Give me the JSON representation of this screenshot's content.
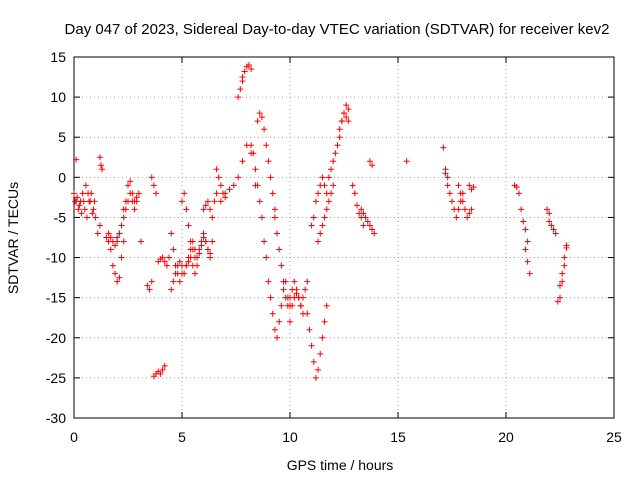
{
  "chart_data": {
    "type": "scatter",
    "title": "Day 047 of 2023, Sidereal Day-to-day VTEC variation (SDTVAR) for receiver kev2",
    "xlabel": "GPS time / hours",
    "ylabel": "SDTVAR / TECUs",
    "xlim": [
      0,
      25
    ],
    "ylim": [
      -30,
      15
    ],
    "xticks": [
      0,
      5,
      10,
      15,
      20,
      25
    ],
    "yticks": [
      -30,
      -25,
      -20,
      -15,
      -10,
      -5,
      0,
      5,
      10,
      15
    ],
    "grid": true,
    "marker": "+",
    "series_color": "#ff0000",
    "series": [
      {
        "name": "SDTVAR",
        "segments": [
          {
            "x": [
              0.0,
              0.1,
              0.2,
              0.3,
              0.4,
              0.5,
              0.6,
              0.7,
              0.8,
              0.9,
              1.0,
              1.1,
              1.2
            ],
            "y": [
              -2,
              -3,
              -4,
              -3,
              -2,
              -4,
              -5,
              -3,
              -2,
              -4,
              -5,
              -7,
              -6
            ]
          },
          {
            "x": [
              0.05,
              0.15,
              0.25,
              0.35,
              0.45,
              0.55,
              0.65,
              0.75,
              0.85,
              0.95
            ],
            "y": [
              -3,
              -2.5,
              -3.5,
              -4.5,
              -3,
              -1,
              -2,
              -3,
              -4.5,
              -3
            ]
          },
          {
            "x": [
              0.1
            ],
            "y": [
              2.2
            ]
          },
          {
            "x": [
              1.2,
              1.25,
              1.3
            ],
            "y": [
              2.5,
              1.5,
              1.0
            ]
          },
          {
            "x": [
              1.5,
              1.6,
              1.7,
              1.8,
              1.9,
              2.0,
              2.1,
              2.2,
              2.3
            ],
            "y": [
              -7.5,
              -8,
              -9,
              -11,
              -12,
              -13,
              -12.5,
              -10,
              -8
            ]
          },
          {
            "x": [
              1.6,
              1.7,
              1.8,
              1.9,
              2.0,
              2.1
            ],
            "y": [
              -7,
              -7.5,
              -8,
              -8.5,
              -7.5,
              -7
            ]
          },
          {
            "x": [
              2.0,
              2.1,
              2.2,
              2.3,
              2.4,
              2.5,
              2.6,
              2.7,
              2.8,
              2.9,
              3.0
            ],
            "y": [
              -8,
              -7,
              -6,
              -4,
              -3,
              -1,
              -0.5,
              -2,
              -3,
              -2.5,
              -2
            ]
          },
          {
            "x": [
              2.3,
              2.4,
              2.5,
              2.6,
              2.7,
              2.8,
              2.9
            ],
            "y": [
              -5,
              -4,
              -3,
              -2,
              -3,
              -4,
              -3
            ]
          },
          {
            "x": [
              3.1
            ],
            "y": [
              -8
            ]
          },
          {
            "x": [
              3.4,
              3.5,
              3.6
            ],
            "y": [
              -13.5,
              -14,
              -13
            ]
          },
          {
            "x": [
              3.6,
              3.7,
              3.8
            ],
            "y": [
              0,
              -1,
              -2
            ]
          },
          {
            "x": [
              3.7,
              3.8,
              3.9,
              4.0,
              4.1,
              4.2
            ],
            "y": [
              -24.8,
              -24.5,
              -24.2,
              -24.5,
              -24,
              -23.5
            ]
          },
          {
            "x": [
              3.9,
              4.0,
              4.1,
              4.2,
              4.3,
              4.4,
              4.5,
              4.6,
              4.7,
              4.8,
              4.9,
              5.0
            ],
            "y": [
              -10.5,
              -10.2,
              -10,
              -10.5,
              -11,
              -10,
              -7,
              -9,
              -11,
              -12,
              -13,
              -12
            ]
          },
          {
            "x": [
              4.5,
              4.6,
              4.7,
              4.8,
              4.9,
              5.0,
              5.1,
              5.2,
              5.3,
              5.4,
              5.5,
              5.6,
              5.7,
              5.8,
              5.9,
              6.0,
              6.1,
              6.2,
              6.3,
              6.4
            ],
            "y": [
              -14,
              -13,
              -12,
              -11,
              -10.5,
              -11,
              -12,
              -11,
              -10,
              -9,
              -8,
              -9,
              -10,
              -9,
              -8,
              -7,
              -8,
              -9,
              -10,
              -8
            ]
          },
          {
            "x": [
              5.0,
              5.1,
              5.2,
              5.3,
              5.4,
              5.5,
              5.6
            ],
            "y": [
              -3,
              -2,
              -4,
              -6,
              -8,
              -9,
              -10
            ]
          },
          {
            "x": [
              5.2,
              5.3,
              5.4,
              5.5,
              5.6,
              5.7,
              5.8,
              5.9,
              6.0,
              6.1,
              6.2,
              6.3
            ],
            "y": [
              -11,
              -10.5,
              -10,
              -11,
              -12,
              -11,
              -9.5,
              -8.5,
              -7.5,
              -8,
              -9,
              -9.5
            ]
          },
          {
            "x": [
              6.0,
              6.1,
              6.2,
              6.3,
              6.4,
              6.5,
              6.6
            ],
            "y": [
              -4,
              -3.5,
              -3,
              -4,
              -5,
              -3,
              -2
            ]
          },
          {
            "x": [
              6.6,
              6.7,
              6.8,
              6.9,
              7.0
            ],
            "y": [
              1,
              0,
              -1,
              -2,
              -2.5
            ]
          },
          {
            "x": [
              6.8,
              7.0,
              7.2,
              7.4,
              7.6,
              7.8,
              8.0,
              8.2,
              8.4
            ],
            "y": [
              -3,
              -2,
              -1.5,
              -1,
              0,
              2,
              4,
              3,
              -1
            ]
          },
          {
            "x": [
              7.6,
              7.7,
              7.8
            ],
            "y": [
              10,
              11,
              12
            ]
          },
          {
            "x": [
              7.8,
              7.9,
              8.0,
              8.1,
              8.2
            ],
            "y": [
              12.5,
              13.2,
              13.8,
              14,
              13.5
            ]
          },
          {
            "x": [
              8.2,
              8.3,
              8.4,
              8.5,
              8.6,
              8.7,
              8.8,
              8.9,
              9.0,
              9.1,
              9.2,
              9.3,
              9.4,
              9.5,
              9.6,
              9.7,
              9.8,
              9.9,
              10.0
            ],
            "y": [
              4,
              3,
              1,
              -1,
              -3,
              -5,
              -8,
              -10,
              -13,
              -15,
              -17,
              -19,
              -20,
              -18,
              -16,
              -14,
              -13,
              -15,
              -16
            ]
          },
          {
            "x": [
              8.5,
              8.6,
              8.7,
              8.8,
              8.9,
              9.0,
              9.1,
              9.2,
              9.3
            ],
            "y": [
              7,
              8,
              7.5,
              6,
              4,
              2,
              0,
              -2,
              -4
            ]
          },
          {
            "x": [
              9.3,
              9.4,
              9.5,
              9.6,
              9.7,
              9.8,
              9.9,
              10.0,
              10.1,
              10.2,
              10.3,
              10.4,
              10.5,
              10.6
            ],
            "y": [
              -5,
              -7,
              -9,
              -11,
              -13,
              -15,
              -16,
              -15,
              -14,
              -13,
              -14,
              -15,
              -16,
              -17
            ]
          },
          {
            "x": [
              10.0,
              10.1,
              10.2,
              10.3,
              10.4,
              10.5,
              10.6,
              10.7,
              10.8
            ],
            "y": [
              -18,
              -16,
              -15,
              -14.5,
              -15,
              -16,
              -15,
              -14,
              -13
            ]
          },
          {
            "x": [
              10.8,
              10.9,
              11.0,
              11.1,
              11.2,
              11.3,
              11.4,
              11.5,
              11.6,
              11.7
            ],
            "y": [
              -17,
              -19,
              -21,
              -23,
              -25,
              -24,
              -22,
              -20,
              -18,
              -16
            ]
          },
          {
            "x": [
              11.0,
              11.1,
              11.2,
              11.3,
              11.4,
              11.5,
              11.6,
              11.7,
              11.8,
              11.9,
              12.0,
              12.1,
              12.2,
              12.3,
              12.4,
              12.5,
              12.6,
              12.7
            ],
            "y": [
              -6,
              -5,
              -3,
              -2,
              -1,
              0,
              -1,
              -2,
              0,
              1,
              2,
              3,
              4,
              5,
              7,
              8,
              9,
              8.5
            ]
          },
          {
            "x": [
              11.3,
              11.4,
              11.5,
              11.6,
              11.7,
              11.8,
              11.9,
              12.0
            ],
            "y": [
              -8,
              -7,
              -6,
              -5,
              -4,
              -3,
              -2,
              -1
            ]
          },
          {
            "x": [
              12.3,
              12.4,
              12.5,
              12.6,
              12.7
            ],
            "y": [
              6,
              7,
              8,
              7.5,
              7
            ]
          },
          {
            "x": [
              12.9,
              13.0,
              13.1,
              13.2,
              13.3,
              13.4
            ],
            "y": [
              -1,
              -2,
              -3.5,
              -4.5,
              -5,
              -6
            ]
          },
          {
            "x": [
              13.3,
              13.4,
              13.5,
              13.6,
              13.7,
              13.8,
              13.9
            ],
            "y": [
              -4,
              -4.5,
              -5,
              -5.5,
              -6,
              -6.5,
              -7
            ]
          },
          {
            "x": [
              13.7,
              13.8
            ],
            "y": [
              2,
              1.5
            ]
          },
          {
            "x": [
              15.4
            ],
            "y": [
              2
            ]
          },
          {
            "x": [
              17.1,
              17.2,
              17.3
            ],
            "y": [
              3.7,
              1,
              0
            ]
          },
          {
            "x": [
              17.2,
              17.3,
              17.4,
              17.5,
              17.6,
              17.7,
              17.8,
              17.9,
              18.0
            ],
            "y": [
              0.5,
              -1,
              -2,
              -3,
              -4,
              -5,
              -4,
              -3,
              -2
            ]
          },
          {
            "x": [
              17.8,
              17.9,
              18.0,
              18.1,
              18.2,
              18.3,
              18.4
            ],
            "y": [
              -1,
              -2,
              -3,
              -4,
              -5,
              -4.5,
              -4
            ]
          },
          {
            "x": [
              18.3,
              18.4,
              18.5
            ],
            "y": [
              -1,
              -1.5,
              -1.2
            ]
          },
          {
            "x": [
              20.4,
              20.5,
              20.6,
              20.7
            ],
            "y": [
              -1,
              -1.2,
              -2,
              -4
            ]
          },
          {
            "x": [
              20.8,
              20.9,
              21.0
            ],
            "y": [
              -5.5,
              -6.5,
              -8
            ]
          },
          {
            "x": [
              20.9,
              21.0,
              21.1
            ],
            "y": [
              -9,
              -10.5,
              -12
            ]
          },
          {
            "x": [
              21.9,
              22.0
            ],
            "y": [
              -4,
              -4.5
            ]
          },
          {
            "x": [
              22.0,
              22.1,
              22.2,
              22.3
            ],
            "y": [
              -5.5,
              -6,
              -6.5,
              -7
            ]
          },
          {
            "x": [
              22.4,
              22.5,
              22.6,
              22.7,
              22.8
            ],
            "y": [
              -15.5,
              -15,
              -13,
              -11,
              -8.5
            ]
          },
          {
            "x": [
              22.5,
              22.6,
              22.7,
              22.8
            ],
            "y": [
              -13.5,
              -12,
              -10,
              -8.8
            ]
          }
        ]
      }
    ]
  }
}
